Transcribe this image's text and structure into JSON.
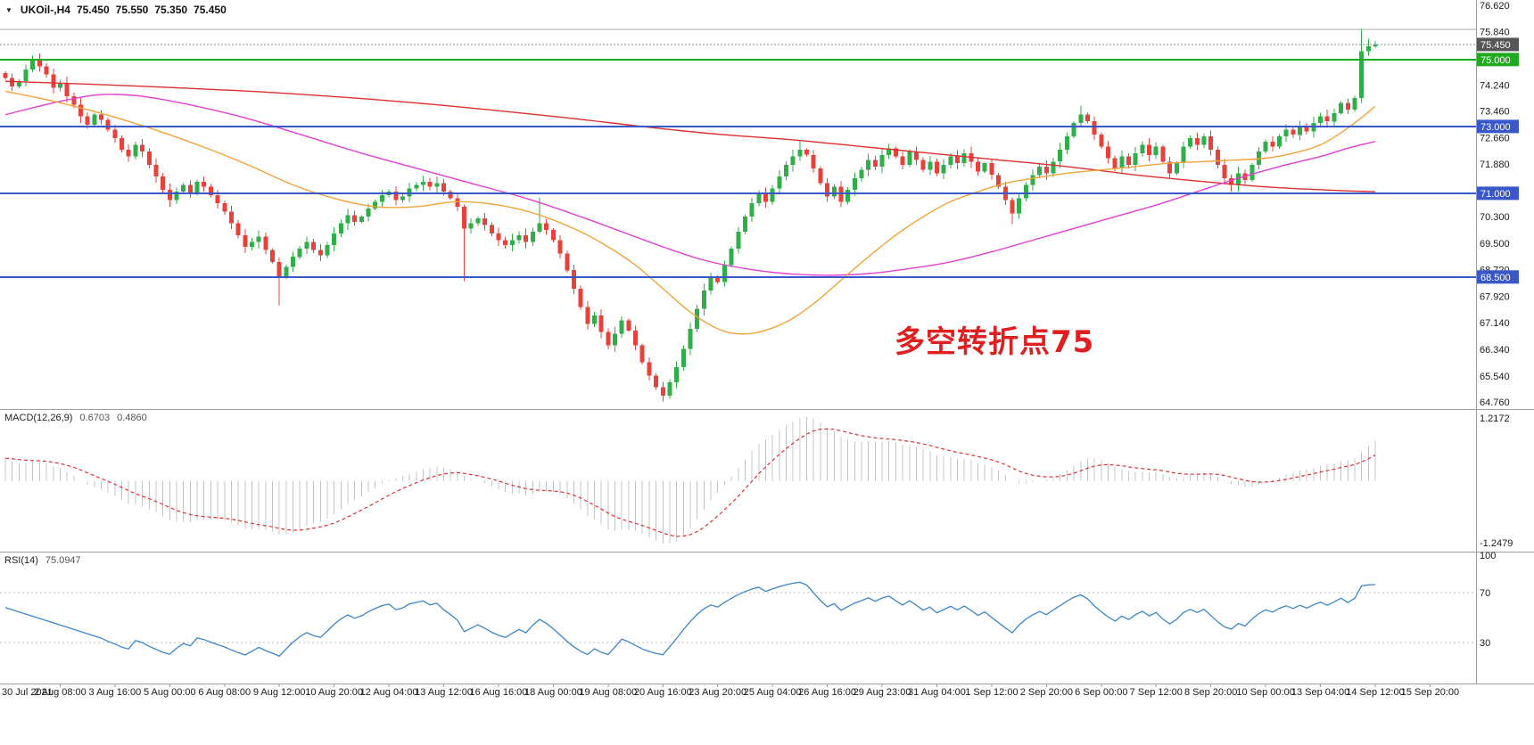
{
  "colors": {
    "background": "#ffffff",
    "up_candle": "#2fae49",
    "down_candle": "#e8403a",
    "ma_slow": "#dc2f2f",
    "ma_medium": "#e23fd0",
    "ma_fast": "#f2a33c",
    "hline_blue": "#3a57c9",
    "hline_green": "#1faa1f",
    "current_price_line": "#888888",
    "resistance_line": "#aaaaaa",
    "macd_histogram": "#c4c4c4",
    "macd_signal": "#e03030",
    "rsi_line": "#3d85c8",
    "rsi_level": "#bbbbbb",
    "separator": "#9c9c9c",
    "axis_text": "#1a1a1a",
    "annotation": "#e02020",
    "badge_text": "#ffffff"
  },
  "title": {
    "dropdown_icon": "▼",
    "symbol": "UKOil-,H4",
    "open": "75.450",
    "high": "75.550",
    "low": "75.350",
    "close": "75.450"
  },
  "annotation": {
    "text": "多空转折点75"
  },
  "price_axis": {
    "tick_labels": [
      "76.620",
      "75.840",
      "74.240",
      "73.460",
      "72.660",
      "71.880",
      "70.300",
      "69.500",
      "68.720",
      "67.920",
      "67.140",
      "66.340",
      "65.540",
      "64.760"
    ],
    "badges": [
      {
        "label": "75.450",
        "price": 75.45,
        "bg": "#565656"
      },
      {
        "label": "75.000",
        "price": 75.0,
        "bg": "#1faa1f"
      },
      {
        "label": "73.000",
        "price": 73.0,
        "bg": "#3a57c9"
      },
      {
        "label": "71.000",
        "price": 71.0,
        "bg": "#3a57c9"
      },
      {
        "label": "68.500",
        "price": 68.5,
        "bg": "#3a57c9"
      }
    ]
  },
  "time_axis": {
    "labels": [
      "30 Jul 2021",
      "2 Aug 08:00",
      "3 Aug 16:00",
      "5 Aug 00:00",
      "6 Aug 08:00",
      "9 Aug 12:00",
      "10 Aug 20:00",
      "12 Aug 04:00",
      "13 Aug 12:00",
      "16 Aug 16:00",
      "18 Aug 00:00",
      "19 Aug 08:00",
      "20 Aug 16:00",
      "23 Aug 20:00",
      "25 Aug 04:00",
      "26 Aug 16:00",
      "29 Aug 23:00",
      "31 Aug 04:00",
      "1 Sep 12:00",
      "2 Sep 20:00",
      "6 Sep 00:00",
      "7 Sep 12:00",
      "8 Sep 20:00",
      "10 Sep 00:00",
      "13 Sep 04:00",
      "14 Sep 12:00",
      "15 Sep 20:00"
    ]
  },
  "indicators": {
    "macd": {
      "label": "MACD(12,26,9)",
      "value_main": "0.6703",
      "value_signal": "0.4860",
      "axis_max": "1.2172",
      "axis_min": "-1.2479",
      "params": [
        12,
        26,
        9
      ]
    },
    "rsi": {
      "label": "RSI(14)",
      "value": "75.0947",
      "axis_labels": [
        "100",
        "70",
        "30"
      ],
      "levels": [
        70,
        30
      ],
      "params": [
        14
      ]
    }
  },
  "chart_data": {
    "type": "candlestick",
    "symbol": "UKOil-",
    "timeframe": "H4",
    "title": "UKOil-,H4 75.450 75.550 75.350 75.450",
    "ylim": [
      64.55,
      76.78
    ],
    "grid": false,
    "legend_position": "none",
    "first_open": 74.6,
    "closes": [
      74.45,
      74.2,
      74.35,
      74.7,
      75.02,
      74.8,
      74.55,
      74.15,
      74.3,
      73.9,
      73.65,
      73.3,
      73.05,
      73.35,
      73.2,
      72.9,
      72.65,
      72.3,
      72.1,
      72.45,
      72.25,
      71.85,
      71.5,
      71.1,
      70.8,
      71.05,
      71.25,
      71.0,
      71.35,
      71.2,
      70.95,
      70.7,
      70.45,
      70.1,
      69.75,
      69.4,
      69.55,
      69.7,
      69.3,
      68.95,
      68.5,
      68.8,
      69.1,
      69.35,
      69.55,
      69.3,
      69.15,
      69.45,
      69.8,
      70.1,
      70.35,
      70.15,
      70.3,
      70.55,
      70.75,
      70.95,
      71.05,
      70.8,
      70.9,
      71.15,
      71.25,
      71.35,
      71.2,
      71.3,
      71.05,
      70.85,
      70.6,
      69.95,
      70.1,
      70.25,
      70.05,
      69.8,
      69.6,
      69.45,
      69.6,
      69.75,
      69.55,
      69.85,
      70.1,
      69.9,
      69.6,
      69.2,
      68.7,
      68.15,
      67.6,
      67.1,
      67.35,
      66.85,
      66.45,
      66.8,
      67.2,
      66.9,
      66.45,
      65.95,
      65.55,
      65.2,
      64.95,
      65.35,
      65.8,
      66.35,
      66.95,
      67.55,
      68.1,
      68.5,
      68.35,
      68.85,
      69.35,
      69.85,
      70.3,
      70.7,
      71.0,
      70.75,
      71.15,
      71.5,
      71.85,
      72.1,
      72.3,
      72.15,
      71.75,
      71.3,
      70.9,
      71.2,
      70.75,
      71.1,
      71.45,
      71.7,
      72.0,
      71.8,
      72.15,
      72.35,
      72.1,
      71.85,
      72.25,
      72.0,
      71.7,
      71.95,
      71.6,
      71.85,
      72.1,
      71.9,
      72.2,
      71.95,
      71.65,
      71.9,
      71.55,
      71.2,
      70.8,
      70.4,
      70.85,
      71.25,
      71.55,
      71.8,
      71.6,
      71.95,
      72.3,
      72.7,
      73.1,
      73.35,
      73.15,
      72.75,
      72.4,
      72.05,
      71.75,
      72.1,
      71.85,
      72.2,
      72.45,
      72.15,
      72.4,
      71.95,
      71.6,
      71.9,
      72.4,
      72.65,
      72.45,
      72.7,
      72.3,
      71.85,
      71.45,
      71.25,
      71.6,
      71.4,
      71.85,
      72.25,
      72.55,
      72.4,
      72.7,
      72.9,
      72.75,
      73.0,
      72.85,
      73.1,
      73.3,
      73.15,
      73.4,
      73.7,
      73.5,
      73.85,
      75.25,
      75.4,
      75.45
    ],
    "wick_overrides": {
      "4": [
        75.12,
        null
      ],
      "40": [
        null,
        67.65
      ],
      "67": [
        null,
        68.38
      ],
      "78": [
        70.88,
        null
      ],
      "96": [
        null,
        64.78
      ],
      "116": [
        72.58,
        null
      ],
      "147": [
        null,
        70.08
      ],
      "157": [
        73.62,
        null
      ],
      "179": [
        null,
        71.05
      ],
      "198": [
        75.93,
        null
      ],
      "199": [
        75.62,
        75.12
      ],
      "200": [
        75.55,
        75.35
      ]
    },
    "horizontal_lines": [
      {
        "price": 75.9,
        "color_key": "resistance_line",
        "style": "solid",
        "width": 1
      },
      {
        "price": 75.45,
        "color_key": "current_price_line",
        "style": "dotted",
        "width": 1
      },
      {
        "price": 75.0,
        "color_key": "hline_green",
        "style": "solid",
        "width": 2
      },
      {
        "price": 73.0,
        "color_key": "hline_blue",
        "style": "solid",
        "width": 2
      },
      {
        "price": 71.0,
        "color_key": "hline_blue",
        "style": "solid",
        "width": 2
      },
      {
        "price": 68.5,
        "color_key": "hline_blue",
        "style": "solid",
        "width": 2
      }
    ],
    "moving_averages": [
      {
        "name": "ma-slow-red",
        "color_key": "ma_slow",
        "points": [
          [
            0,
            74.35
          ],
          [
            20,
            74.2
          ],
          [
            40,
            74.0
          ],
          [
            60,
            73.7
          ],
          [
            80,
            73.3
          ],
          [
            95,
            72.95
          ],
          [
            105,
            72.75
          ],
          [
            115,
            72.6
          ],
          [
            125,
            72.4
          ],
          [
            135,
            72.2
          ],
          [
            145,
            72.0
          ],
          [
            155,
            71.8
          ],
          [
            165,
            71.55
          ],
          [
            175,
            71.35
          ],
          [
            185,
            71.18
          ],
          [
            195,
            71.08
          ],
          [
            200,
            71.05
          ]
        ]
      },
      {
        "name": "ma-medium-magenta",
        "color_key": "ma_medium",
        "points": [
          [
            0,
            73.35
          ],
          [
            8,
            73.75
          ],
          [
            14,
            73.95
          ],
          [
            20,
            73.9
          ],
          [
            28,
            73.6
          ],
          [
            36,
            73.2
          ],
          [
            44,
            72.7
          ],
          [
            52,
            72.2
          ],
          [
            60,
            71.75
          ],
          [
            68,
            71.3
          ],
          [
            76,
            70.85
          ],
          [
            84,
            70.3
          ],
          [
            90,
            69.85
          ],
          [
            96,
            69.4
          ],
          [
            102,
            69.0
          ],
          [
            108,
            68.75
          ],
          [
            114,
            68.6
          ],
          [
            120,
            68.55
          ],
          [
            126,
            68.6
          ],
          [
            132,
            68.75
          ],
          [
            138,
            68.95
          ],
          [
            144,
            69.25
          ],
          [
            150,
            69.6
          ],
          [
            156,
            69.95
          ],
          [
            162,
            70.3
          ],
          [
            168,
            70.65
          ],
          [
            174,
            71.05
          ],
          [
            180,
            71.45
          ],
          [
            186,
            71.8
          ],
          [
            192,
            72.1
          ],
          [
            196,
            72.35
          ],
          [
            200,
            72.55
          ]
        ]
      },
      {
        "name": "ma-fast-orange",
        "color_key": "ma_fast",
        "points": [
          [
            0,
            74.05
          ],
          [
            6,
            73.8
          ],
          [
            12,
            73.5
          ],
          [
            18,
            73.15
          ],
          [
            24,
            72.75
          ],
          [
            30,
            72.3
          ],
          [
            36,
            71.8
          ],
          [
            42,
            71.25
          ],
          [
            48,
            70.85
          ],
          [
            54,
            70.6
          ],
          [
            60,
            70.6
          ],
          [
            66,
            70.75
          ],
          [
            72,
            70.65
          ],
          [
            78,
            70.35
          ],
          [
            84,
            69.85
          ],
          [
            88,
            69.4
          ],
          [
            92,
            68.85
          ],
          [
            96,
            68.15
          ],
          [
            100,
            67.45
          ],
          [
            104,
            66.95
          ],
          [
            107,
            66.8
          ],
          [
            110,
            66.85
          ],
          [
            114,
            67.15
          ],
          [
            118,
            67.7
          ],
          [
            122,
            68.4
          ],
          [
            126,
            69.1
          ],
          [
            130,
            69.75
          ],
          [
            134,
            70.3
          ],
          [
            138,
            70.75
          ],
          [
            142,
            71.05
          ],
          [
            146,
            71.3
          ],
          [
            150,
            71.45
          ],
          [
            155,
            71.6
          ],
          [
            160,
            71.7
          ],
          [
            165,
            71.8
          ],
          [
            170,
            71.9
          ],
          [
            175,
            71.95
          ],
          [
            180,
            72.0
          ],
          [
            184,
            72.05
          ],
          [
            188,
            72.2
          ],
          [
            192,
            72.45
          ],
          [
            196,
            72.95
          ],
          [
            200,
            73.6
          ]
        ]
      }
    ],
    "indicators_derived": {
      "macd_from_closes": [
        12,
        26,
        9
      ],
      "rsi_from_closes": 14
    }
  }
}
